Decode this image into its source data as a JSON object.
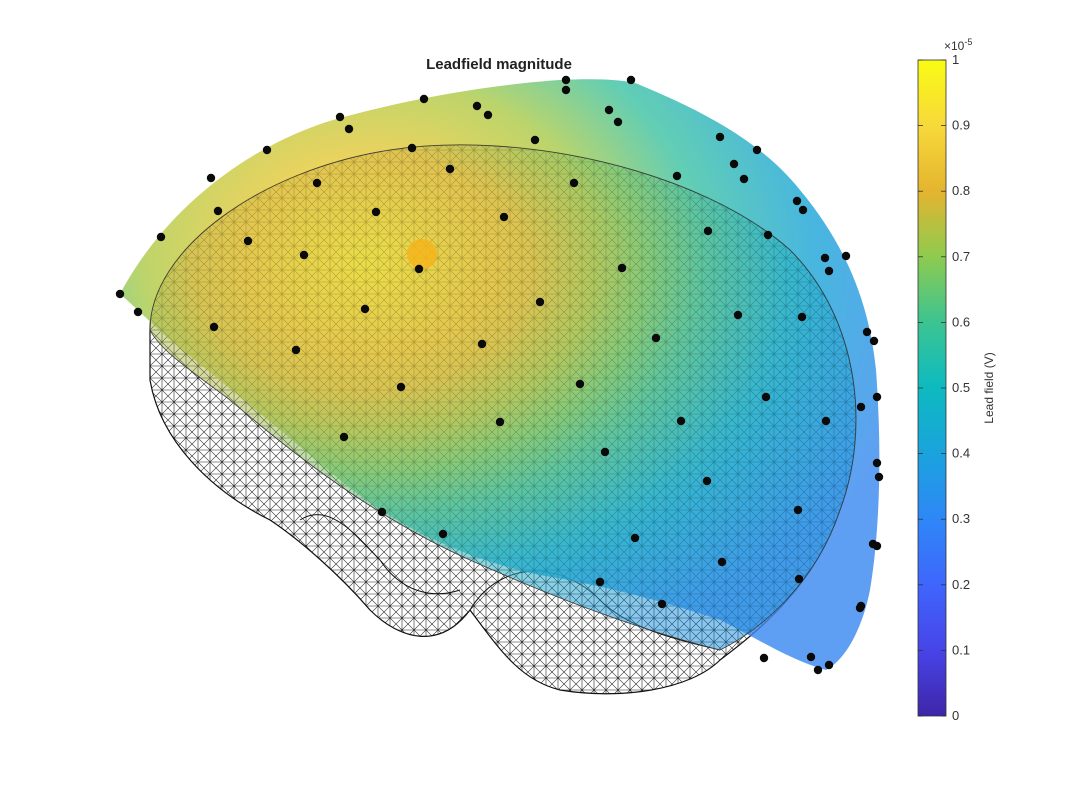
{
  "chart_data": {
    "type": "surface",
    "title": "Leadfield magnitude",
    "colorbar": {
      "label": "Lead field (V)",
      "multiplier_base": "×10",
      "multiplier_exp": "-5",
      "range": [
        0,
        1
      ],
      "ticks": [
        "0",
        "0.1",
        "0.2",
        "0.3",
        "0.4",
        "0.5",
        "0.6",
        "0.7",
        "0.8",
        "0.9",
        "1"
      ],
      "colormap": "parula"
    },
    "grid": false,
    "axes_visible": false
  }
}
